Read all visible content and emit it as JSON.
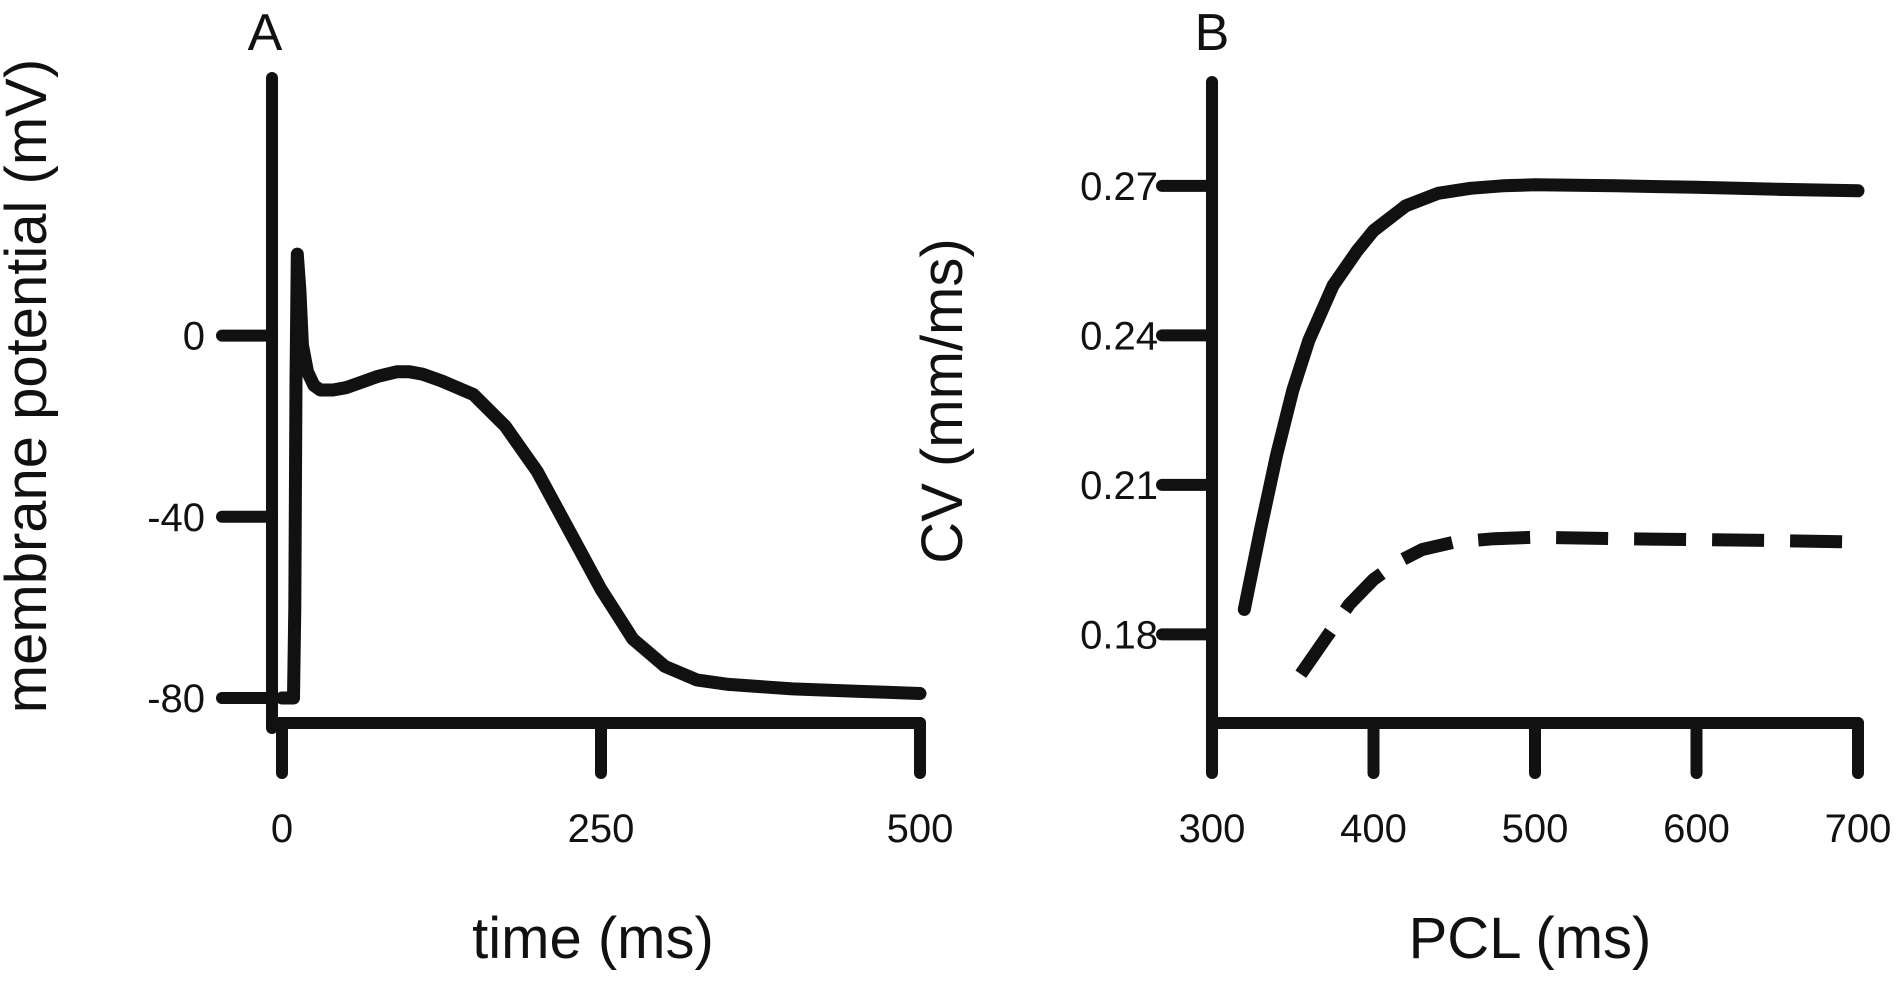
{
  "chart_data": [
    {
      "type": "line",
      "panel": "A",
      "xlabel": "time (ms)",
      "ylabel": "membrane potential (mV)",
      "xlim": [
        0,
        500
      ],
      "ylim": [
        -80,
        20
      ],
      "x_ticks": [
        0,
        250,
        500
      ],
      "y_ticks": [
        0,
        -40,
        -80
      ],
      "grid": false,
      "series": [
        {
          "style": "solid",
          "x": [
            0,
            5,
            9,
            10,
            11,
            12,
            14,
            16,
            20,
            25,
            30,
            40,
            50,
            60,
            75,
            90,
            100,
            110,
            125,
            150,
            175,
            200,
            225,
            250,
            275,
            300,
            325,
            350,
            400,
            450,
            500
          ],
          "y": [
            -80,
            -80,
            -80,
            -60,
            -10,
            18,
            10,
            -2,
            -8,
            -11,
            -12,
            -12,
            -11.5,
            -10.5,
            -9,
            -8,
            -8,
            -8.5,
            -10,
            -13,
            -20,
            -30,
            -43,
            -56,
            -67,
            -73,
            -76,
            -77,
            -78,
            -78.5,
            -79
          ]
        }
      ]
    },
    {
      "type": "line",
      "panel": "B",
      "xlabel": "PCL (ms)",
      "ylabel": "CV (mm/ms)",
      "xlim": [
        300,
        700
      ],
      "ylim": [
        0.16,
        0.28
      ],
      "x_ticks": [
        300,
        400,
        500,
        600,
        700
      ],
      "y_ticks": [
        0.27,
        0.24,
        0.21,
        0.18
      ],
      "grid": false,
      "series": [
        {
          "style": "solid",
          "x": [
            320,
            330,
            340,
            350,
            360,
            375,
            390,
            400,
            420,
            440,
            460,
            480,
            500,
            550,
            600,
            650,
            700
          ],
          "y": [
            0.185,
            0.201,
            0.216,
            0.229,
            0.239,
            0.25,
            0.257,
            0.261,
            0.266,
            0.2685,
            0.2695,
            0.27,
            0.2702,
            0.27,
            0.2697,
            0.2693,
            0.269
          ]
        },
        {
          "style": "dashed",
          "x": [
            355,
            370,
            385,
            400,
            415,
            430,
            450,
            475,
            500,
            550,
            600,
            650,
            700
          ],
          "y": [
            0.172,
            0.179,
            0.186,
            0.191,
            0.1945,
            0.197,
            0.1985,
            0.1992,
            0.1995,
            0.1992,
            0.199,
            0.1988,
            0.1985
          ]
        }
      ]
    }
  ]
}
